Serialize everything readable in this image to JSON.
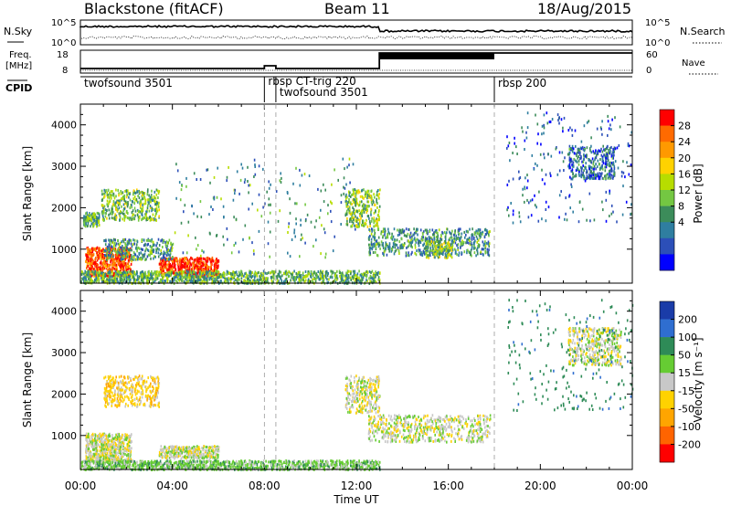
{
  "header": {
    "station": "Blackstone (fitACF)",
    "beam": "Beam 11",
    "date": "18/Aug/2015"
  },
  "top_panels": {
    "nsky_label": "N.Sky",
    "nsky_ticks": [
      "10^5",
      "10^0"
    ],
    "nsearch_label": "N.Search",
    "nsearch_ticks": [
      "10^5",
      "10^0"
    ],
    "freq_label_1": "Freq.",
    "freq_label_2": "[MHz]",
    "freq_ticks": [
      "18",
      "8"
    ],
    "nave_label": "Nave",
    "nave_ticks": [
      "60",
      "0"
    ],
    "cpid_label": "CPID",
    "cpid_segments": [
      {
        "label": "twofsound 3501",
        "start_h": 0,
        "end_h": 8.0
      },
      {
        "label": "rbsp CT-trig 220",
        "start_h": 8.0,
        "end_h": 8.5
      },
      {
        "label": "twofsound 3501",
        "start_h": 8.5,
        "end_h": 18.0
      },
      {
        "label": "rbsp 200",
        "start_h": 18.0,
        "end_h": 24
      }
    ]
  },
  "colorbars": {
    "power": {
      "label": "Power [dB]",
      "ticks": [
        "28",
        "24",
        "20",
        "16",
        "12",
        "8",
        "4"
      ],
      "colors": [
        "#ff0000",
        "#ff6a00",
        "#ff9900",
        "#ffd200",
        "#b7dd00",
        "#74c742",
        "#3c8c5a",
        "#2f7ea0",
        "#2c4fb8",
        "#0000ff"
      ]
    },
    "velocity": {
      "label": "Velocity [m s⁻¹]",
      "ticks": [
        "200",
        "100",
        "50",
        "15",
        "-15",
        "-50",
        "-100",
        "-200"
      ],
      "colors": [
        "#1a3ca8",
        "#2f6ed0",
        "#2e8b57",
        "#66cc33",
        "#c8c8c8",
        "#ffd200",
        "#ffa500",
        "#ff6400",
        "#ff0000"
      ]
    }
  },
  "axes": {
    "ylabel": "Slant Range [km]",
    "xlabel": "Time UT",
    "y_ticks": [
      "1000",
      "2000",
      "3000",
      "4000"
    ],
    "x_ticks": [
      "00:00",
      "04:00",
      "08:00",
      "12:00",
      "16:00",
      "20:00",
      "00:00"
    ]
  },
  "chart_data": [
    {
      "type": "heatmap",
      "title": "",
      "xlabel": "Time UT",
      "ylabel": "Slant Range [km]",
      "xlim": [
        0,
        24
      ],
      "ylim": [
        180,
        4500
      ],
      "colorbar": "Power [dB]",
      "scatter_regions": [
        {
          "t": [
            0.2,
            2.2
          ],
          "r": [
            350,
            1050
          ],
          "value": 26,
          "density": "high"
        },
        {
          "t": [
            3.4,
            6.0
          ],
          "r": [
            350,
            800
          ],
          "value": 28,
          "density": "high"
        },
        {
          "t": [
            0.9,
            3.4
          ],
          "r": [
            1700,
            2450
          ],
          "value": 13,
          "density": "medium"
        },
        {
          "t": [
            0.1,
            0.8
          ],
          "r": [
            1550,
            1900
          ],
          "value": 12,
          "density": "medium"
        },
        {
          "t": [
            1.0,
            4.0
          ],
          "r": [
            750,
            1250
          ],
          "value": 10,
          "density": "medium"
        },
        {
          "t": [
            0.0,
            13.0
          ],
          "r": [
            180,
            480
          ],
          "value": 12,
          "density": "high"
        },
        {
          "t": [
            11.5,
            13.0
          ],
          "r": [
            1550,
            2450
          ],
          "value": 14,
          "density": "medium"
        },
        {
          "t": [
            12.5,
            17.8
          ],
          "r": [
            850,
            1500
          ],
          "value": 10,
          "density": "medium"
        },
        {
          "t": [
            15.0,
            16.2
          ],
          "r": [
            800,
            1200
          ],
          "value": 14,
          "density": "medium"
        },
        {
          "t": [
            21.2,
            23.2
          ],
          "r": [
            2700,
            3500
          ],
          "value": 7,
          "density": "medium"
        },
        {
          "t": [
            18.5,
            24.0
          ],
          "r": [
            1600,
            4300
          ],
          "value": 6,
          "density": "sparse"
        },
        {
          "t": [
            4.0,
            12.0
          ],
          "r": [
            800,
            3200
          ],
          "value": 10,
          "density": "sparse"
        }
      ]
    },
    {
      "type": "heatmap",
      "title": "",
      "xlabel": "Time UT",
      "ylabel": "Slant Range [km]",
      "xlim": [
        0,
        24
      ],
      "ylim": [
        180,
        4500
      ],
      "colorbar": "Velocity [m s⁻¹]",
      "scatter_regions": [
        {
          "t": [
            0.2,
            2.2
          ],
          "r": [
            350,
            1050
          ],
          "value": 0,
          "density": "high"
        },
        {
          "t": [
            3.4,
            6.0
          ],
          "r": [
            450,
            750
          ],
          "value": 0,
          "density": "high"
        },
        {
          "t": [
            1.0,
            3.4
          ],
          "r": [
            1700,
            2450
          ],
          "value": -30,
          "density": "medium"
        },
        {
          "t": [
            0.0,
            13.0
          ],
          "r": [
            180,
            400
          ],
          "value": 30,
          "density": "high"
        },
        {
          "t": [
            12.5,
            17.8
          ],
          "r": [
            850,
            1500
          ],
          "value": 0,
          "density": "medium"
        },
        {
          "t": [
            11.5,
            13.0
          ],
          "r": [
            1550,
            2450
          ],
          "value": 0,
          "density": "medium"
        },
        {
          "t": [
            21.2,
            23.5
          ],
          "r": [
            2700,
            3600
          ],
          "value": 0,
          "density": "medium"
        },
        {
          "t": [
            18.5,
            24.0
          ],
          "r": [
            1600,
            4300
          ],
          "value": 80,
          "density": "sparse"
        }
      ]
    }
  ]
}
